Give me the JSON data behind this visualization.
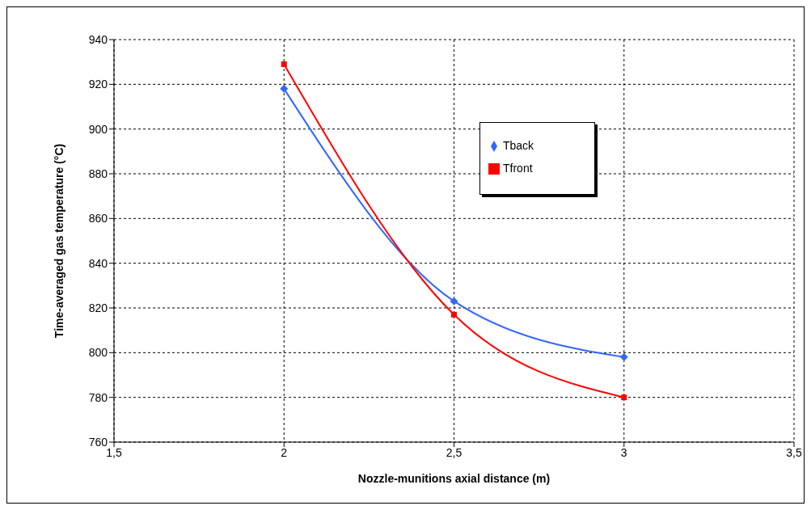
{
  "chart_data": {
    "type": "line",
    "xlabel": "Nozzle-munitions axial distance (m)",
    "ylabel": "Time-averaged gas temperature (°C)",
    "x": [
      2,
      2.5,
      3
    ],
    "series": [
      {
        "name": "Tback",
        "color": "#3366ff",
        "marker": "diamond",
        "values": [
          918,
          823,
          798
        ]
      },
      {
        "name": "Tfront",
        "color": "#ff0000",
        "marker": "square",
        "values": [
          929,
          817,
          780
        ]
      }
    ],
    "xlim": [
      1.5,
      3.5
    ],
    "xticks": [
      {
        "value": 1.5,
        "label": "1,5"
      },
      2,
      {
        "value": 2.5,
        "label": "2,5"
      },
      3,
      {
        "value": 3.5,
        "label": "3,5"
      }
    ],
    "ylim": [
      760,
      940
    ],
    "yticks": [
      760,
      780,
      800,
      820,
      840,
      860,
      880,
      900,
      920,
      940
    ],
    "grid": true,
    "legend": "top right",
    "line_style": "solid"
  }
}
